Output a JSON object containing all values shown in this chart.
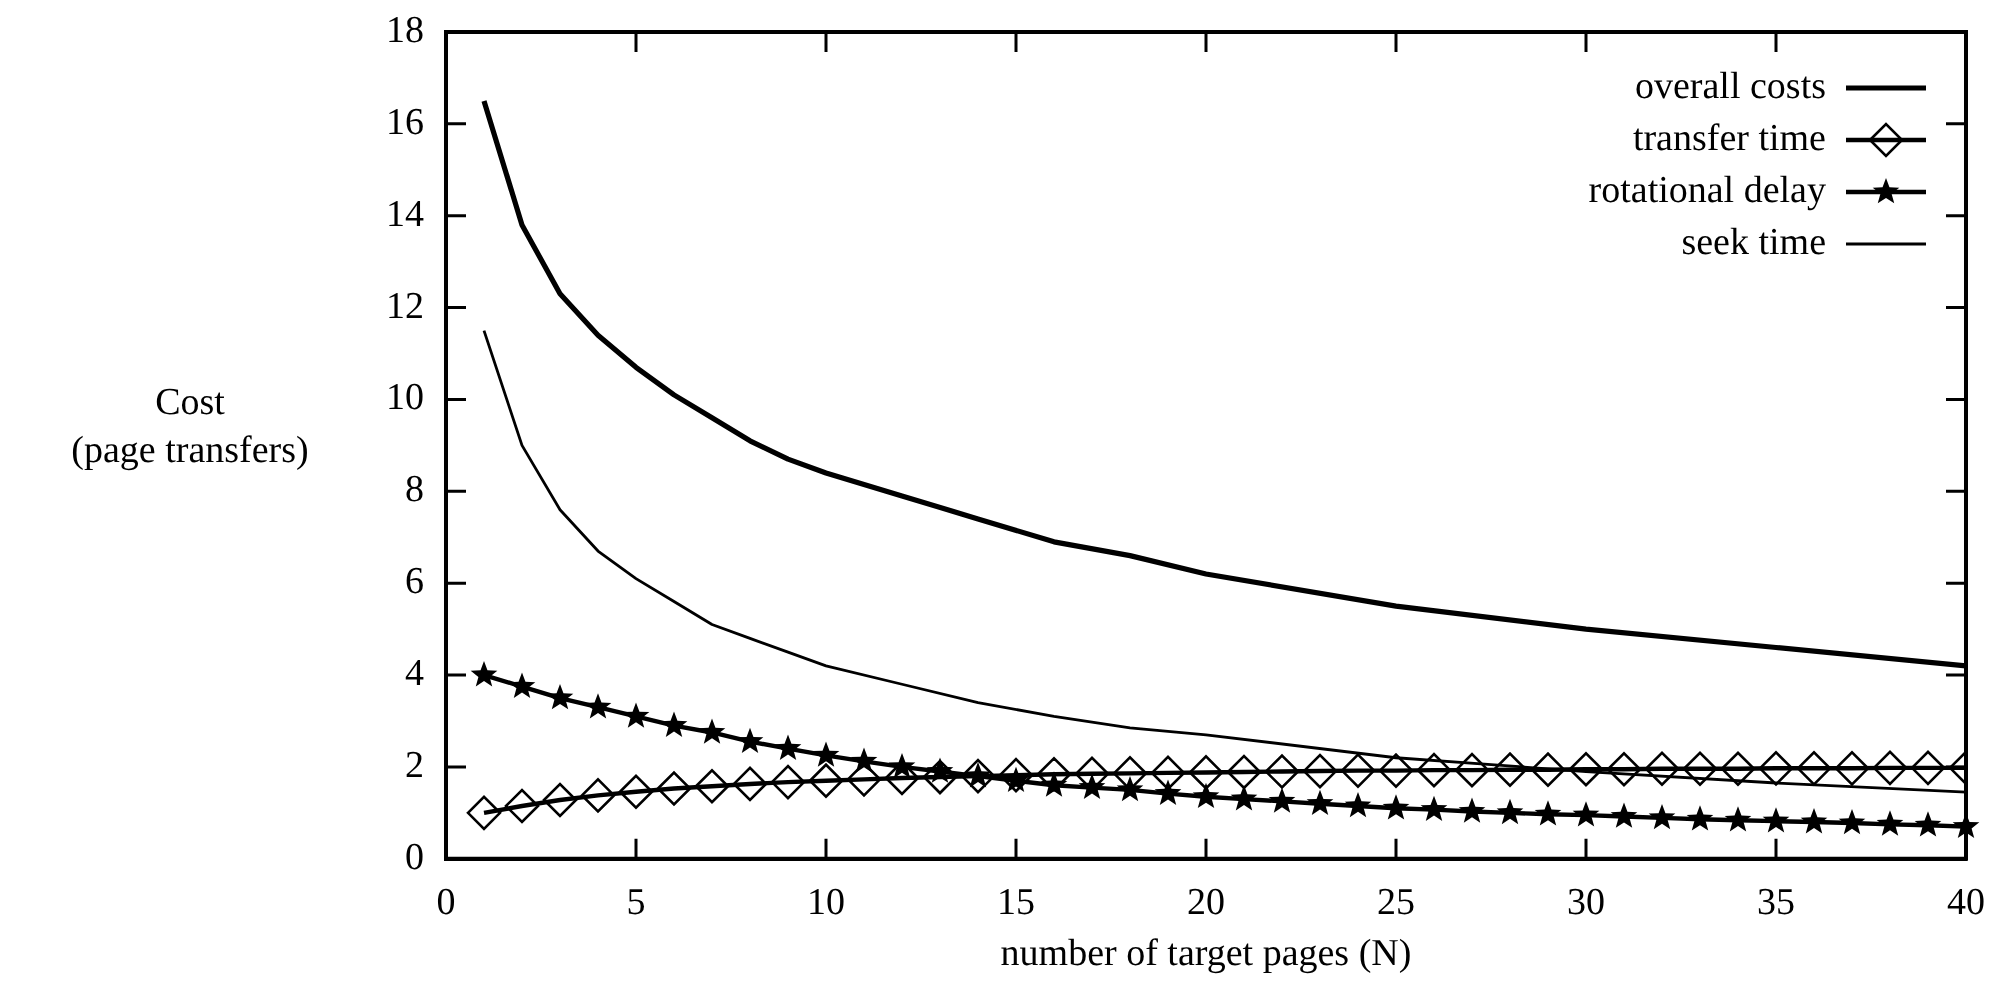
{
  "chart_data": {
    "type": "line",
    "xlabel": "number of target pages (N)",
    "ylabel": "Cost\n(page transfers)",
    "xlim": [
      0,
      40
    ],
    "xticks": [
      0,
      5,
      10,
      15,
      20,
      25,
      30,
      35,
      40
    ],
    "ylim": [
      0,
      18
    ],
    "yticks": [
      0,
      2,
      4,
      6,
      8,
      10,
      12,
      14,
      16,
      18
    ],
    "grid": false,
    "legend": "top right",
    "line_style": "solid",
    "series": [
      {
        "name": "overall costs",
        "color": "#000000",
        "marker": "none",
        "x": [
          1,
          2,
          3,
          4,
          5,
          6,
          7,
          8,
          9,
          10,
          12,
          14,
          16,
          18,
          20,
          25,
          30,
          35,
          40
        ],
        "values": [
          16.5,
          13.8,
          12.3,
          11.4,
          10.7,
          10.1,
          9.6,
          9.1,
          8.7,
          8.4,
          7.9,
          7.4,
          6.9,
          6.6,
          6.2,
          5.5,
          5.0,
          4.6,
          4.2
        ]
      },
      {
        "name": "transfer time",
        "color": "#000000",
        "marker": "diamond",
        "x": [
          1,
          2,
          3,
          4,
          5,
          6,
          7,
          8,
          9,
          10,
          11,
          12,
          13,
          14,
          15,
          16,
          17,
          18,
          19,
          20,
          21,
          22,
          23,
          24,
          25,
          26,
          27,
          28,
          29,
          30,
          31,
          32,
          33,
          34,
          35,
          36,
          37,
          38,
          39,
          40
        ],
        "values": [
          1.0,
          1.15,
          1.28,
          1.38,
          1.46,
          1.53,
          1.58,
          1.63,
          1.67,
          1.7,
          1.73,
          1.76,
          1.78,
          1.8,
          1.82,
          1.84,
          1.85,
          1.86,
          1.87,
          1.88,
          1.89,
          1.9,
          1.91,
          1.92,
          1.92,
          1.93,
          1.93,
          1.94,
          1.94,
          1.95,
          1.95,
          1.96,
          1.96,
          1.96,
          1.97,
          1.97,
          1.97,
          1.98,
          1.98,
          1.98
        ]
      },
      {
        "name": "rotational delay",
        "color": "#000000",
        "marker": "star",
        "x": [
          1,
          2,
          3,
          4,
          5,
          6,
          7,
          8,
          9,
          10,
          11,
          12,
          13,
          14,
          15,
          16,
          17,
          18,
          19,
          20,
          21,
          22,
          23,
          24,
          25,
          26,
          27,
          28,
          29,
          30,
          31,
          32,
          33,
          34,
          35,
          36,
          37,
          38,
          39,
          40
        ],
        "values": [
          4.0,
          3.75,
          3.5,
          3.3,
          3.1,
          2.9,
          2.75,
          2.55,
          2.4,
          2.25,
          2.12,
          2.0,
          1.9,
          1.8,
          1.7,
          1.6,
          1.55,
          1.5,
          1.42,
          1.35,
          1.3,
          1.25,
          1.2,
          1.15,
          1.1,
          1.07,
          1.03,
          1.0,
          0.97,
          0.95,
          0.92,
          0.89,
          0.86,
          0.84,
          0.82,
          0.8,
          0.78,
          0.75,
          0.73,
          0.7
        ]
      },
      {
        "name": "seek time",
        "color": "#000000",
        "marker": "none",
        "x": [
          1,
          2,
          3,
          4,
          5,
          6,
          7,
          8,
          9,
          10,
          12,
          14,
          16,
          18,
          20,
          25,
          30,
          35,
          40
        ],
        "values": [
          11.5,
          9.0,
          7.6,
          6.7,
          6.1,
          5.6,
          5.1,
          4.8,
          4.5,
          4.2,
          3.8,
          3.4,
          3.1,
          2.85,
          2.7,
          2.2,
          1.9,
          1.65,
          1.45
        ]
      }
    ]
  }
}
